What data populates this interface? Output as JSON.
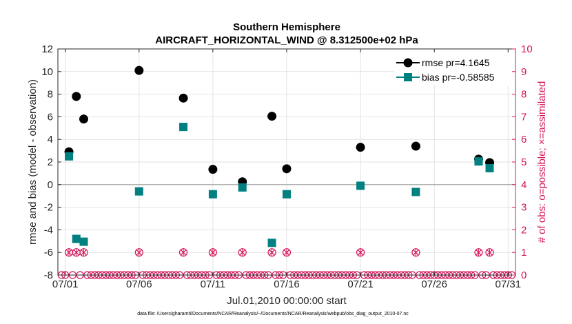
{
  "chart_data": {
    "type": "scatter",
    "title": "Southern Hemisphere",
    "subtitle": "AIRCRAFT_HORIZONTAL_WIND @ 8.312500e+02 hPa",
    "xlabel": "Jul.01,2010 00:00:00 start",
    "ylabel_left": "rmse and bias (model - observation)",
    "ylabel_right": "# of obs: o=possible; ×=assimilated",
    "footnote": "data file: /Users/gharamti/Documents/NCAR/Reanalysis/~/Documents/NCAR/Reanalysis/webpub/obs_diag_output_2010-07.nc",
    "xlim": [
      0.5,
      31.5
    ],
    "ylim_left": [
      -8,
      12
    ],
    "ylim_right": [
      0,
      10
    ],
    "x_ticks": [
      1,
      6,
      11,
      16,
      21,
      26,
      31
    ],
    "x_tick_labels": [
      "07/01",
      "07/06",
      "07/11",
      "07/16",
      "07/21",
      "07/26",
      "07/31"
    ],
    "y_ticks_left": [
      -8,
      -6,
      -4,
      -2,
      0,
      2,
      4,
      6,
      8,
      10,
      12
    ],
    "y_tick_labels_left": [
      "-8",
      "-6",
      "-4",
      "-2",
      "0",
      "2",
      "4",
      "6",
      "8",
      "10",
      "12"
    ],
    "y_ticks_right": [
      0,
      1,
      2,
      3,
      4,
      5,
      6,
      7,
      8,
      9,
      10
    ],
    "y_tick_labels_right": [
      "0",
      "1",
      "2",
      "3",
      "4",
      "5",
      "6",
      "7",
      "8",
      "9",
      "10"
    ],
    "grid": true,
    "colors": {
      "rmse": "#000000",
      "bias": "#008080",
      "obs": "#d4145a",
      "zero_line": "#b0b0b0",
      "grid": "#e2e2e2",
      "axis": "#262626"
    },
    "series": [
      {
        "name": "rmse pr=4.1645",
        "legend": "rmse pr=4.1645",
        "marker": "circle",
        "x": [
          1.25,
          1.75,
          2.25,
          6.0,
          9.0,
          11.0,
          13.0,
          15.0,
          16.0,
          21.0,
          24.75,
          29.0,
          29.75
        ],
        "values": [
          2.9,
          7.8,
          5.8,
          10.1,
          7.65,
          1.35,
          0.25,
          6.05,
          1.4,
          3.3,
          3.4,
          2.25,
          1.95
        ]
      },
      {
        "name": "bias pr=-0.58585",
        "legend": "bias pr=-0.58585",
        "marker": "square",
        "x": [
          1.25,
          1.75,
          2.25,
          6.0,
          9.0,
          11.0,
          13.0,
          15.0,
          16.0,
          21.0,
          24.75,
          29.0,
          29.75
        ],
        "values": [
          2.5,
          -4.8,
          -5.05,
          -0.6,
          5.1,
          -0.85,
          -0.25,
          -5.15,
          -0.85,
          -0.1,
          -0.65,
          2.05,
          1.45
        ]
      }
    ],
    "obs_possible": {
      "x": [
        1.25,
        1.75,
        2.25,
        6.0,
        9.0,
        11.0,
        13.0,
        15.0,
        16.0,
        21.0,
        24.75,
        29.0,
        29.75
      ],
      "values": [
        1,
        1,
        1,
        1,
        1,
        1,
        1,
        1,
        1,
        1,
        1,
        1,
        1
      ]
    },
    "obs_zero_step_days": 0.25
  }
}
